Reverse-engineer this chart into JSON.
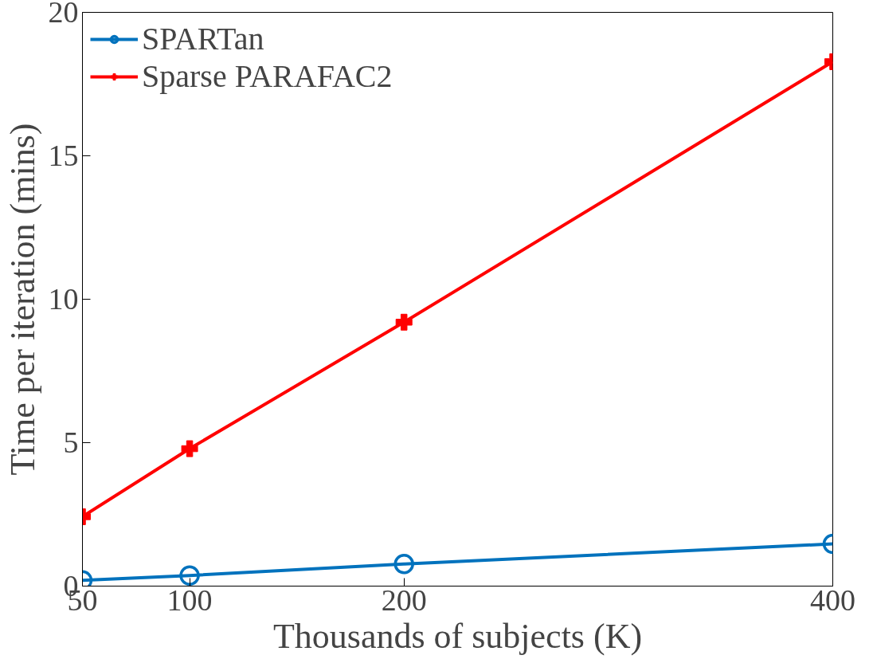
{
  "chart_data": {
    "type": "line",
    "xlabel": "Thousands of subjects (K)",
    "ylabel": "Time per iteration (mins)",
    "x": [
      50,
      100,
      200,
      400
    ],
    "series": [
      {
        "name": "SPARTan",
        "color": "#0072bd",
        "marker": "circle",
        "values": [
          0.2,
          0.37,
          0.77,
          1.47
        ]
      },
      {
        "name": "Sparse PARAFAC2",
        "color": "#ff0000",
        "marker": "cross",
        "values": [
          2.42,
          4.79,
          9.2,
          18.28
        ]
      }
    ],
    "xlim": [
      50,
      400
    ],
    "xticks": [
      50,
      100,
      200,
      400
    ],
    "ylim": [
      0,
      20
    ],
    "yticks": [
      0,
      5,
      10,
      15,
      20
    ],
    "grid": false,
    "legend": "top left",
    "line_style": "solid"
  }
}
